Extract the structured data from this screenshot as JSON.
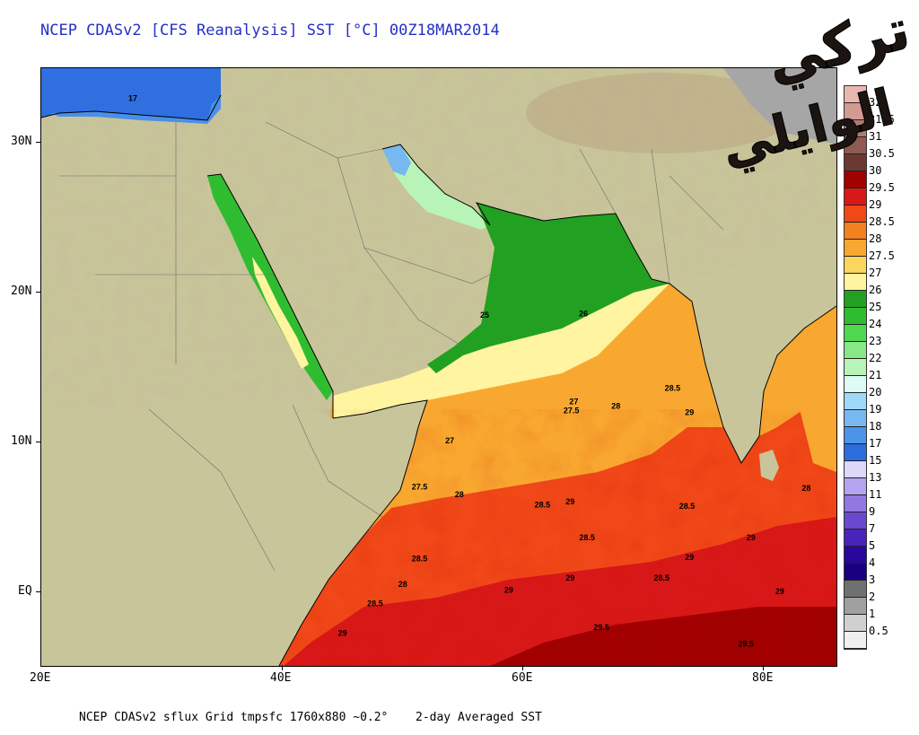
{
  "title": "NCEP CDASv2 [CFS Reanalysis] SST [°C] 00Z18MAR2014",
  "footer": {
    "left": "NCEP CDASv2 sflux Grid tmpsfc 1760x880 ~0.2°",
    "right": "2-day Averaged SST"
  },
  "lat_labels": [
    "30N",
    "20N",
    "10N",
    "EQ"
  ],
  "lon_labels": [
    "20E",
    "40E",
    "60E",
    "80E"
  ],
  "watermark_text": "تركي الوايلي",
  "colorbar": {
    "labels": [
      "32",
      "31.5",
      "31",
      "30.5",
      "30",
      "29.5",
      "29",
      "28.5",
      "28",
      "27.5",
      "27",
      "26",
      "25",
      "24",
      "23",
      "22",
      "21",
      "20",
      "19",
      "18",
      "17",
      "15",
      "13",
      "11",
      "9",
      "7",
      "5",
      "4",
      "3",
      "2",
      "1",
      "0.5"
    ],
    "colors": [
      "#e8b8b0",
      "#d39a92",
      "#b07a72",
      "#8e5a52",
      "#6a3a32",
      "#a00000",
      "#d81818",
      "#f04818",
      "#f48020",
      "#f8a830",
      "#fbd65c",
      "#fff4a0",
      "#22a022",
      "#30bc30",
      "#50d850",
      "#88e888",
      "#b8f4b8",
      "#dcfcf4",
      "#a0d8f8",
      "#78b8f0",
      "#4c94e8",
      "#2c6cdc",
      "#dcd8f8",
      "#b4a4f0",
      "#9078e0",
      "#6a48d0",
      "#4a24b8",
      "#28089c",
      "#1a0080",
      "#707070",
      "#a0a0a0",
      "#d0d0d0",
      "#f0f0f0"
    ]
  },
  "map_values": [
    {
      "text": "17",
      "lon": 27.6,
      "lat": 32.8
    },
    {
      "text": "25",
      "lon": 56.8,
      "lat": 18.3
    },
    {
      "text": "26",
      "lon": 65.0,
      "lat": 18.4
    },
    {
      "text": "28.5",
      "lon": 72.4,
      "lat": 13.4
    },
    {
      "text": "27",
      "lon": 64.2,
      "lat": 12.5
    },
    {
      "text": "27.5",
      "lon": 64.0,
      "lat": 11.9
    },
    {
      "text": "28",
      "lon": 67.7,
      "lat": 12.2
    },
    {
      "text": "29",
      "lon": 73.8,
      "lat": 11.8
    },
    {
      "text": "27",
      "lon": 53.9,
      "lat": 9.9
    },
    {
      "text": "27.5",
      "lon": 51.4,
      "lat": 6.8
    },
    {
      "text": "28",
      "lon": 54.7,
      "lat": 6.3
    },
    {
      "text": "28.5",
      "lon": 61.6,
      "lat": 5.6
    },
    {
      "text": "29",
      "lon": 63.9,
      "lat": 5.8
    },
    {
      "text": "28.5",
      "lon": 73.6,
      "lat": 5.5
    },
    {
      "text": "28",
      "lon": 83.5,
      "lat": 6.7
    },
    {
      "text": "28.5",
      "lon": 65.3,
      "lat": 3.4
    },
    {
      "text": "29",
      "lon": 78.9,
      "lat": 3.4
    },
    {
      "text": "28.5",
      "lon": 51.4,
      "lat": 2.0
    },
    {
      "text": "29",
      "lon": 73.8,
      "lat": 2.1
    },
    {
      "text": "29",
      "lon": 63.9,
      "lat": 0.7
    },
    {
      "text": "28.5",
      "lon": 71.5,
      "lat": 0.7
    },
    {
      "text": "28",
      "lon": 50.0,
      "lat": 0.3
    },
    {
      "text": "29",
      "lon": 58.8,
      "lat": -0.1
    },
    {
      "text": "29",
      "lon": 81.3,
      "lat": -0.2
    },
    {
      "text": "28.5",
      "lon": 47.7,
      "lat": -1.0
    },
    {
      "text": "29",
      "lon": 45.0,
      "lat": -3.0
    },
    {
      "text": "29.5",
      "lon": 66.5,
      "lat": -2.6
    },
    {
      "text": "29.5",
      "lon": 78.5,
      "lat": -3.7
    }
  ],
  "map_extent": {
    "lon_min": 20,
    "lon_max": 86,
    "lat_min": -5,
    "lat_max": 35
  }
}
